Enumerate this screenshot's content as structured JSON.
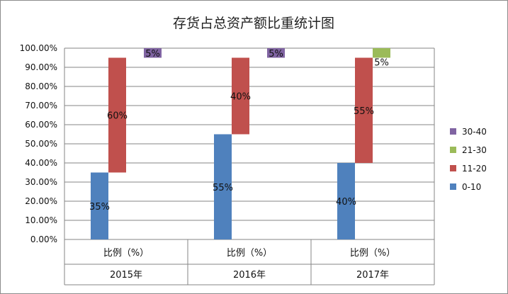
{
  "chart_data": {
    "type": "bar",
    "stacked": true,
    "title": "存货占总资产额比重统计图",
    "xlabel": "",
    "ylabel": "",
    "ylim": [
      0,
      1
    ],
    "yticks": [
      "0.00%",
      "10.00%",
      "20.00%",
      "30.00%",
      "40.00%",
      "50.00%",
      "60.00%",
      "70.00%",
      "80.00%",
      "90.00%",
      "100.00%"
    ],
    "grid": "horizontal",
    "legend_position": "right",
    "categories": [
      "比例（%）",
      "比例（%）",
      "比例（%）"
    ],
    "groups": [
      "2015年",
      "2016年",
      "2017年"
    ],
    "series": [
      {
        "name": "0-10",
        "color": "#4f81bd",
        "values": [
          0.35,
          0.55,
          0.4
        ],
        "labels": [
          "35%",
          "55%",
          "40%"
        ]
      },
      {
        "name": "11-20",
        "color": "#c0504d",
        "values": [
          0.6,
          0.4,
          0.55
        ],
        "labels": [
          "60%",
          "40%",
          "55%"
        ]
      },
      {
        "name": "21-30",
        "color": "#9bbb59",
        "values": [
          0,
          0,
          0.05
        ],
        "labels": [
          "",
          "",
          "5%"
        ]
      },
      {
        "name": "30-40",
        "color": "#8064a2",
        "values": [
          0.05,
          0.05,
          0
        ],
        "labels": [
          "5%",
          "5%",
          ""
        ]
      }
    ]
  }
}
